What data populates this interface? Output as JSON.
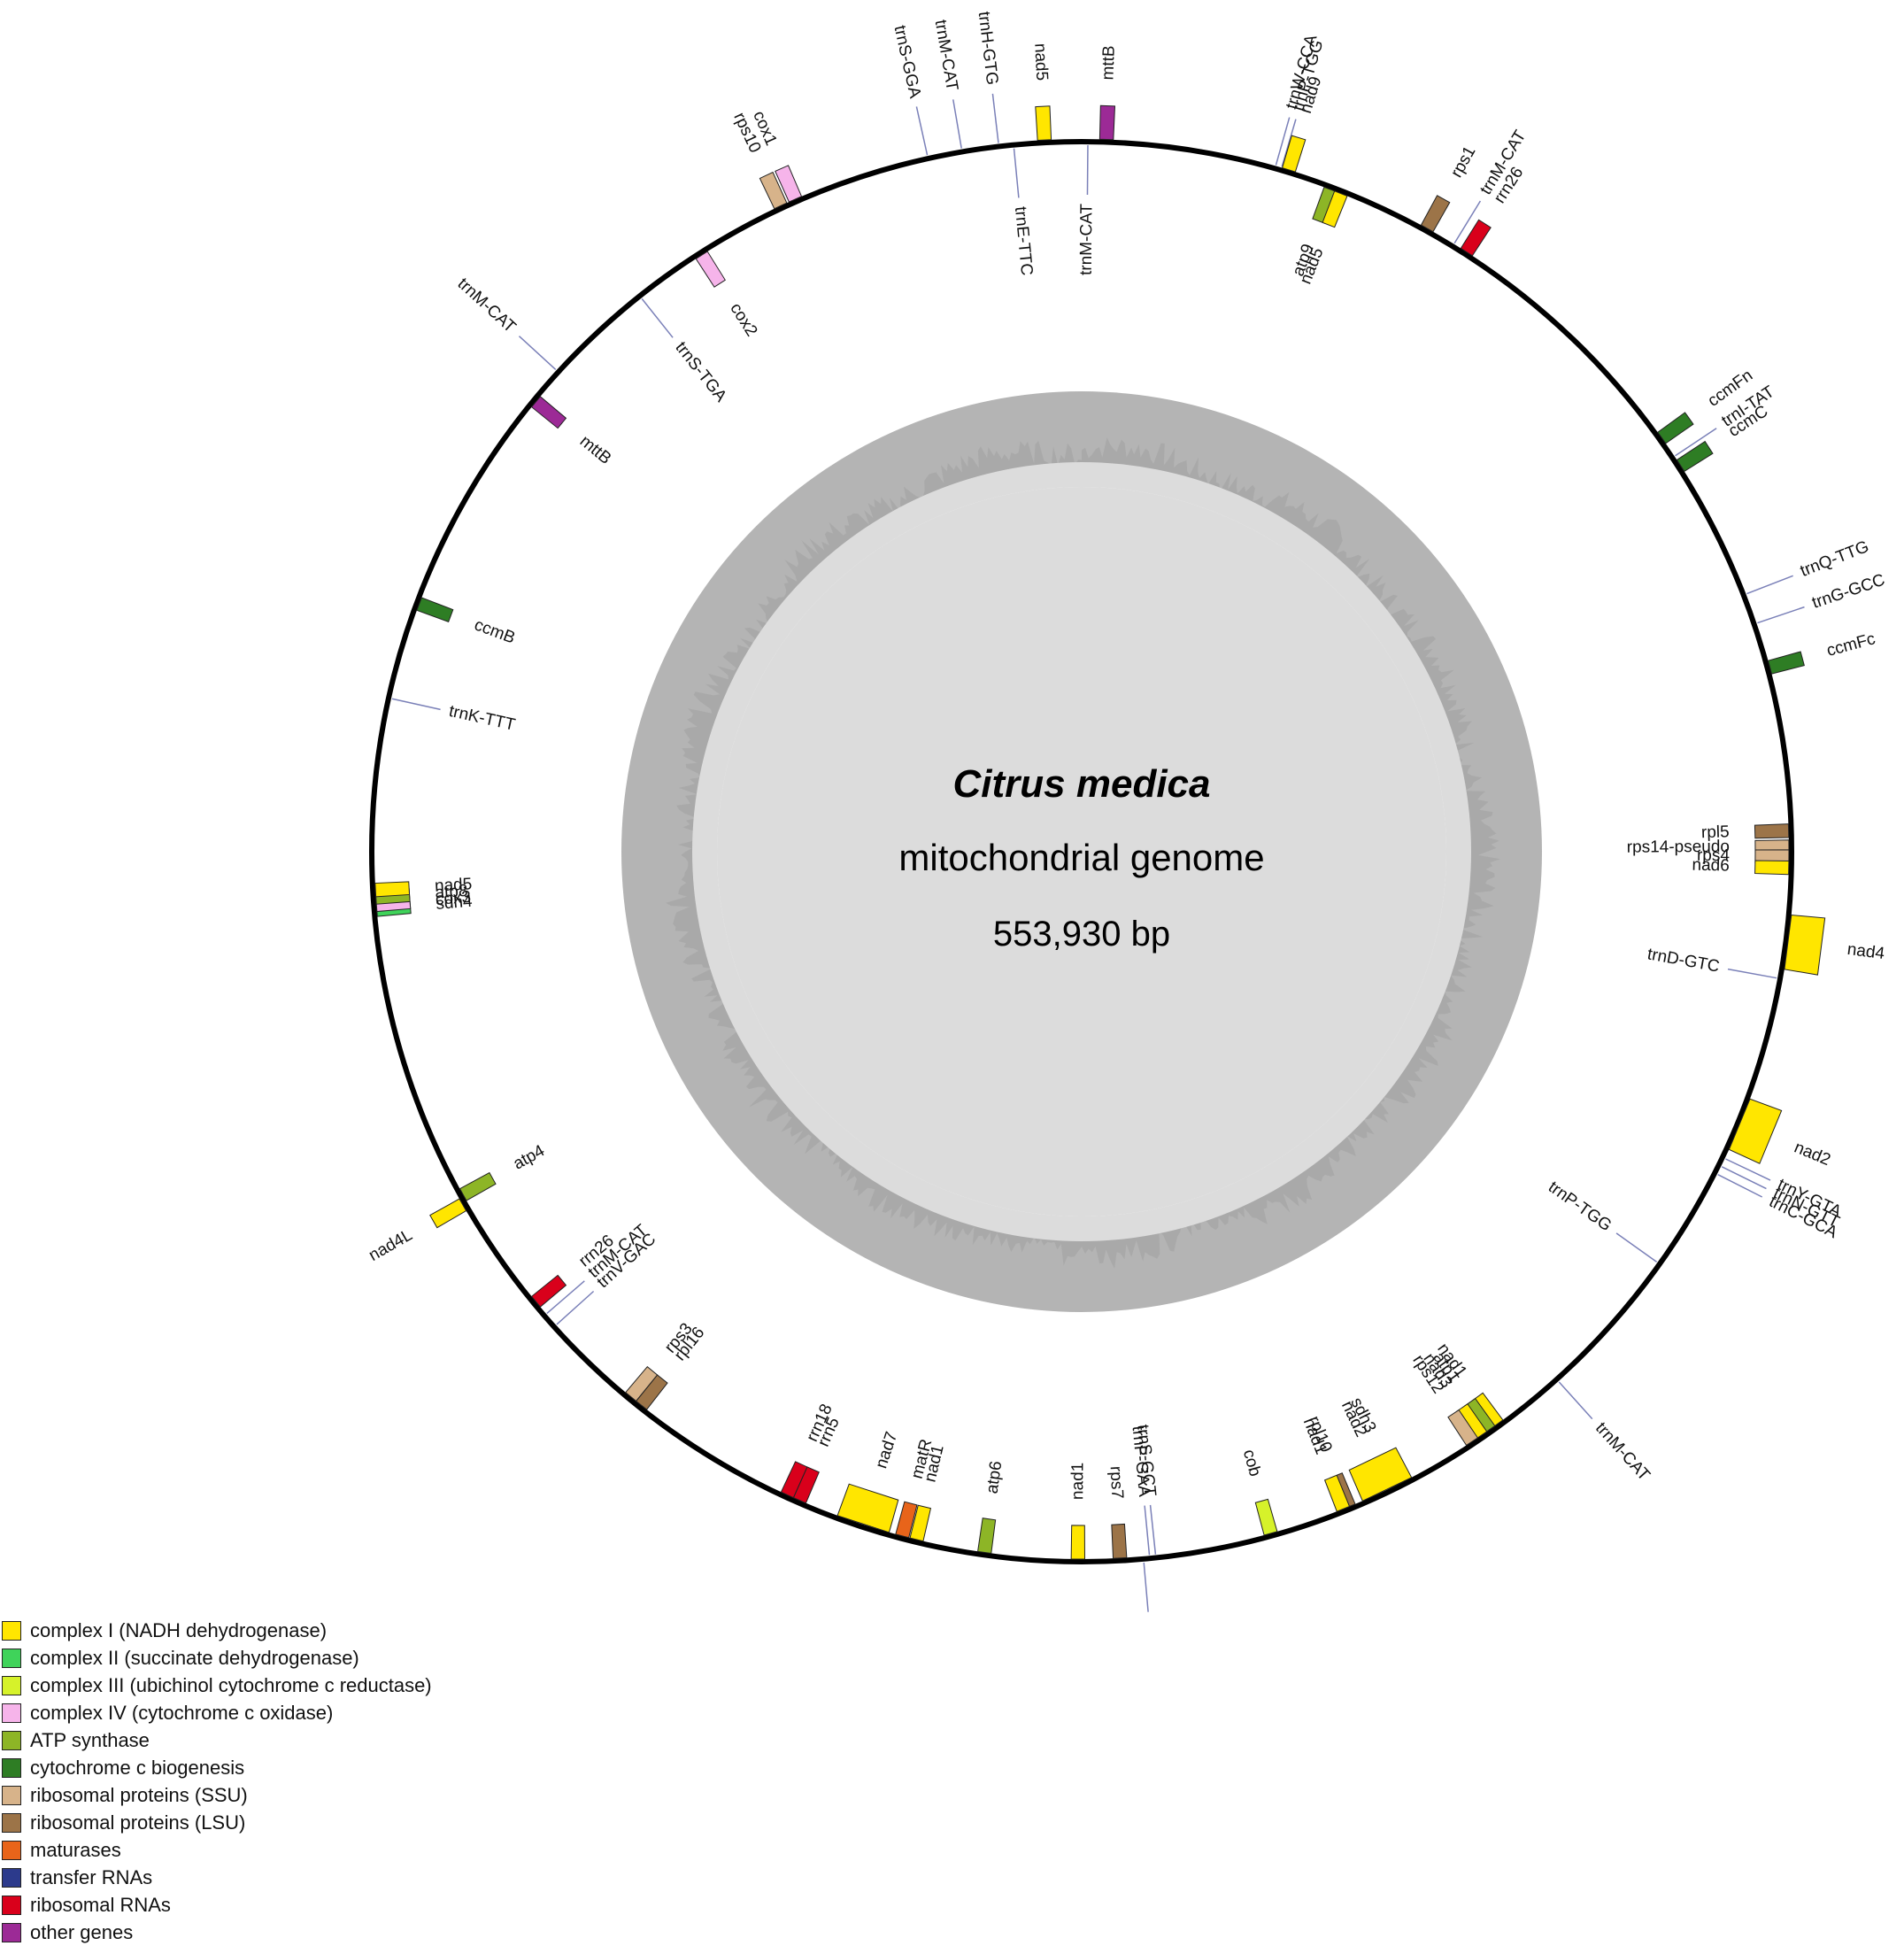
{
  "title": "Citrus medica",
  "subtitle": "mitochondrial genome",
  "genome_size": "553,930 bp",
  "colors": {
    "complex1": "#ffe600",
    "complex2": "#3fd35a",
    "complex3": "#d6f22a",
    "complex4": "#f6b4ea",
    "atp": "#8db526",
    "ccm": "#2e7d24",
    "ssu": "#d7b38a",
    "lsu": "#9c7448",
    "mat": "#e8641a",
    "trna": "#2c3a8c",
    "rrna": "#d9001b",
    "other": "#9c2a96"
  },
  "legend": [
    {
      "label": "complex I (NADH dehydrogenase)",
      "color": "#ffe600"
    },
    {
      "label": "complex II (succinate dehydrogenase)",
      "color": "#3fd35a"
    },
    {
      "label": "complex III (ubichinol cytochrome c reductase)",
      "color": "#d6f22a"
    },
    {
      "label": "complex IV (cytochrome c oxidase)",
      "color": "#f6b4ea"
    },
    {
      "label": "ATP synthase",
      "color": "#8db526"
    },
    {
      "label": "cytochrome c biogenesis",
      "color": "#2e7d24"
    },
    {
      "label": "ribosomal proteins (SSU)",
      "color": "#d7b38a"
    },
    {
      "label": "ribosomal proteins (LSU)",
      "color": "#9c7448"
    },
    {
      "label": "maturases",
      "color": "#e8641a"
    },
    {
      "label": "transfer RNAs",
      "color": "#2c3a8c"
    },
    {
      "label": "ribosomal RNAs",
      "color": "#d9001b"
    },
    {
      "label": "other genes",
      "color": "#9c2a96"
    }
  ],
  "genes": [
    {
      "name": "trnM-CAT",
      "angle": 0.5,
      "cat": "trna",
      "strand": "in"
    },
    {
      "name": "mttB",
      "angle": 2.0,
      "cat": "other",
      "strand": "out"
    },
    {
      "name": "trnW-CCA",
      "angle": 15.8,
      "cat": "trna",
      "strand": "out"
    },
    {
      "name": "trnP-TGG",
      "angle": 16.3,
      "cat": "trna",
      "strand": "out"
    },
    {
      "name": "nad9",
      "angle": 16.9,
      "cat": "complex1",
      "strand": "out"
    },
    {
      "name": "atp9",
      "angle": 20.6,
      "cat": "atp",
      "strand": "in"
    },
    {
      "name": "nad5",
      "angle": 21.5,
      "cat": "complex1",
      "strand": "in"
    },
    {
      "name": "rps1",
      "angle": 29.0,
      "cat": "lsu",
      "strand": "out"
    },
    {
      "name": "trnM-CAT",
      "angle": 31.5,
      "cat": "trna",
      "strand": "out"
    },
    {
      "name": "rrn26",
      "angle": 32.7,
      "cat": "rrna",
      "strand": "out"
    },
    {
      "name": "ccmFn",
      "angle": 54.5,
      "cat": "ccm",
      "strand": "out"
    },
    {
      "name": "trnI-TAT",
      "angle": 56.3,
      "cat": "trna",
      "strand": "out"
    },
    {
      "name": "ccmC",
      "angle": 57.2,
      "cat": "ccm",
      "strand": "out"
    },
    {
      "name": "trnQ-TTG",
      "angle": 68.8,
      "cat": "trna",
      "strand": "out"
    },
    {
      "name": "trnG-GCC",
      "angle": 71.3,
      "cat": "trna",
      "strand": "out"
    },
    {
      "name": "ccmFc",
      "angle": 75.0,
      "cat": "ccm",
      "strand": "out"
    },
    {
      "name": "rpl5",
      "angle": 88.3,
      "cat": "lsu",
      "strand": "in"
    },
    {
      "name": "rps14-pseudo",
      "angle": 89.6,
      "cat": "ssu",
      "strand": "in"
    },
    {
      "name": "rps4",
      "angle": 90.4,
      "cat": "ssu",
      "strand": "in"
    },
    {
      "name": "nad6",
      "angle": 91.3,
      "cat": "complex1",
      "strand": "in"
    },
    {
      "name": "nad4",
      "angle": 97.3,
      "cat": "complex1",
      "strand": "out"
    },
    {
      "name": "trnD-GTC",
      "angle": 100.3,
      "cat": "trna",
      "strand": "in"
    },
    {
      "name": "nad2",
      "angle": 112.5,
      "cat": "complex1",
      "strand": "out"
    },
    {
      "name": "trnY-GTA",
      "angle": 115.5,
      "cat": "trna",
      "strand": "out"
    },
    {
      "name": "trnN-GTT",
      "angle": 116.2,
      "cat": "trna",
      "strand": "out"
    },
    {
      "name": "trnC-GCA",
      "angle": 116.9,
      "cat": "trna",
      "strand": "out"
    },
    {
      "name": "trnP-TGG",
      "angle": 125.5,
      "cat": "trna",
      "strand": "in"
    },
    {
      "name": "trnM-CAT",
      "angle": 138.0,
      "cat": "trna",
      "strand": "out"
    },
    {
      "name": "nad1",
      "angle": 144.0,
      "cat": "complex1",
      "strand": "in"
    },
    {
      "name": "atp1",
      "angle": 144.8,
      "cat": "atp",
      "strand": "in"
    },
    {
      "name": "nad3",
      "angle": 145.6,
      "cat": "complex1",
      "strand": "in"
    },
    {
      "name": "rps12",
      "angle": 146.5,
      "cat": "ssu",
      "strand": "in"
    },
    {
      "name": "sdh3",
      "angle": 153.5,
      "cat": "complex2",
      "strand": "in"
    },
    {
      "name": "nad2",
      "angle": 154.4,
      "cat": "complex1",
      "strand": "in"
    },
    {
      "name": "rpl10",
      "angle": 157.8,
      "cat": "lsu",
      "strand": "in"
    },
    {
      "name": "nad1",
      "angle": 158.3,
      "cat": "complex1",
      "strand": "in"
    },
    {
      "name": "cob",
      "angle": 164.5,
      "cat": "complex3",
      "strand": "in"
    },
    {
      "name": "trnS-GCT",
      "angle": 174.0,
      "cat": "trna",
      "strand": "in"
    },
    {
      "name": "trnF-GAA",
      "angle": 174.5,
      "cat": "trna",
      "strand": "in"
    },
    {
      "name": "trnA-TGC",
      "angle": 175.0,
      "cat": "trna",
      "strand": "out"
    },
    {
      "name": "rps7",
      "angle": 176.9,
      "cat": "lsu",
      "strand": "in"
    },
    {
      "name": "nad1",
      "angle": 180.3,
      "cat": "complex1",
      "strand": "in"
    },
    {
      "name": "atp6",
      "angle": 187.9,
      "cat": "atp",
      "strand": "in"
    },
    {
      "name": "nad1",
      "angle": 193.5,
      "cat": "complex1",
      "strand": "in"
    },
    {
      "name": "matR",
      "angle": 194.7,
      "cat": "mat",
      "strand": "in"
    },
    {
      "name": "nad7",
      "angle": 198.0,
      "cat": "complex1",
      "strand": "in"
    },
    {
      "name": "rrn5",
      "angle": 203.5,
      "cat": "rrna",
      "strand": "in"
    },
    {
      "name": "rrn18",
      "angle": 204.6,
      "cat": "rrna",
      "strand": "in"
    },
    {
      "name": "rpl16",
      "angle": 218.5,
      "cat": "lsu",
      "strand": "in"
    },
    {
      "name": "rps3",
      "angle": 219.6,
      "cat": "ssu",
      "strand": "in"
    },
    {
      "name": "trnV-GAC",
      "angle": 228.0,
      "cat": "trna",
      "strand": "in"
    },
    {
      "name": "trnM-CAT",
      "angle": 229.2,
      "cat": "trna",
      "strand": "in"
    },
    {
      "name": "rrn26",
      "angle": 230.5,
      "cat": "rrna",
      "strand": "in"
    },
    {
      "name": "nad4L",
      "angle": 240.3,
      "cat": "complex1",
      "strand": "out"
    },
    {
      "name": "atp4",
      "angle": 241.0,
      "cat": "atp",
      "strand": "in"
    },
    {
      "name": "sdh4",
      "angle": 265.3,
      "cat": "complex2",
      "strand": "in"
    },
    {
      "name": "cox3",
      "angle": 265.7,
      "cat": "complex4",
      "strand": "in"
    },
    {
      "name": "atp8",
      "angle": 266.3,
      "cat": "atp",
      "strand": "in"
    },
    {
      "name": "nad5",
      "angle": 266.9,
      "cat": "complex1",
      "strand": "in"
    },
    {
      "name": "trnK-TTT",
      "angle": 282.5,
      "cat": "trna",
      "strand": "in"
    },
    {
      "name": "ccmB",
      "angle": 290.5,
      "cat": "ccm",
      "strand": "in"
    },
    {
      "name": "mttB",
      "angle": 309.5,
      "cat": "other",
      "strand": "in"
    },
    {
      "name": "trnM-CAT",
      "angle": 312.5,
      "cat": "trna",
      "strand": "out"
    },
    {
      "name": "trnS-TGA",
      "angle": 321.5,
      "cat": "trna",
      "strand": "in"
    },
    {
      "name": "cox2",
      "angle": 327.5,
      "cat": "complex4",
      "strand": "in"
    },
    {
      "name": "rps10",
      "angle": 335.0,
      "cat": "ssu",
      "strand": "out"
    },
    {
      "name": "cox1",
      "angle": 336.3,
      "cat": "complex4",
      "strand": "out"
    },
    {
      "name": "trnS-GGA",
      "angle": 347.5,
      "cat": "trna",
      "strand": "out"
    },
    {
      "name": "trnM-CAT",
      "angle": 350.3,
      "cat": "trna",
      "strand": "out"
    },
    {
      "name": "trnH-GTG",
      "angle": 353.3,
      "cat": "trna",
      "strand": "out"
    },
    {
      "name": "trnE-TTC",
      "angle": 354.5,
      "cat": "trna",
      "strand": "in"
    },
    {
      "name": "nad5",
      "angle": 357.0,
      "cat": "complex1",
      "strand": "out"
    }
  ]
}
